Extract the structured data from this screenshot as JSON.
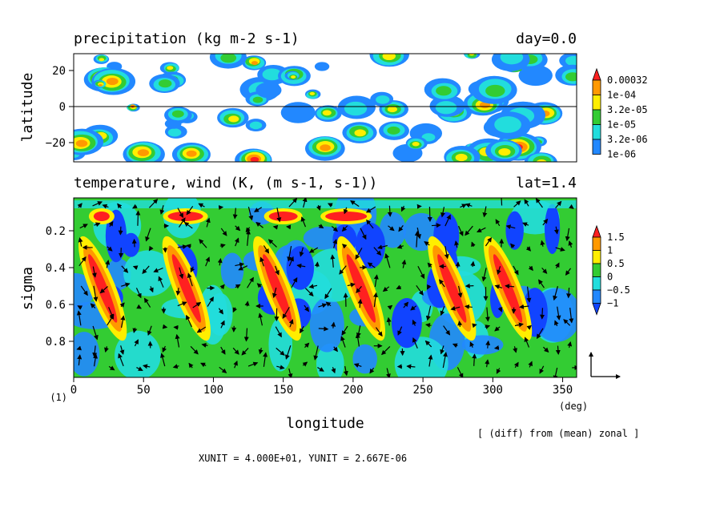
{
  "chart_data": [
    {
      "type": "heatmap",
      "title": "precipitation (kg m-2 s-1)",
      "title_right": "day=0.0",
      "ylabel": "latitude",
      "x_range": [
        0,
        360
      ],
      "ylim": [
        -30,
        30
      ],
      "y_ticks": [
        "20",
        "0",
        "−20"
      ],
      "reference_line_y": 0,
      "colorbar": {
        "labels": [
          "0.00032",
          "1e-04",
          "3.2e-05",
          "1e-05",
          "3.2e-06",
          "1e-06"
        ],
        "colors": [
          "#ff2020",
          "#ff9900",
          "#ffee00",
          "#33cc33",
          "#22dddd",
          "#2288ff"
        ]
      }
    },
    {
      "type": "heatmap",
      "title": "temperature, wind (K, (m s-1, s-1))",
      "title_right": "lat=1.4",
      "xlabel": "longitude",
      "ylabel": "sigma",
      "x_ticks": [
        "0",
        "50",
        "100",
        "150",
        "200",
        "250",
        "300",
        "350"
      ],
      "x_unit_label": "(deg)",
      "y_ticks": [
        "0.2",
        "0.4",
        "0.6",
        "0.8"
      ],
      "ylim": [
        1.0,
        0.0
      ],
      "warm_columns_lon": [
        15,
        75,
        140,
        200,
        265,
        305
      ],
      "colorbar": {
        "labels": [
          "1.5",
          "1",
          "0.5",
          "0",
          "−0.5",
          "−1"
        ],
        "colors": [
          "#ff2020",
          "#ff9900",
          "#ffee00",
          "#33cc33",
          "#22dddd",
          "#2288ff",
          "#1144ff"
        ]
      },
      "vector_overlay": true
    }
  ],
  "footer": {
    "panel_index": "(1)",
    "diff_note": "[ (diff) from (mean) zonal ]",
    "units_line": "XUNIT = 4.000E+01, YUNIT = 2.667E-06"
  }
}
